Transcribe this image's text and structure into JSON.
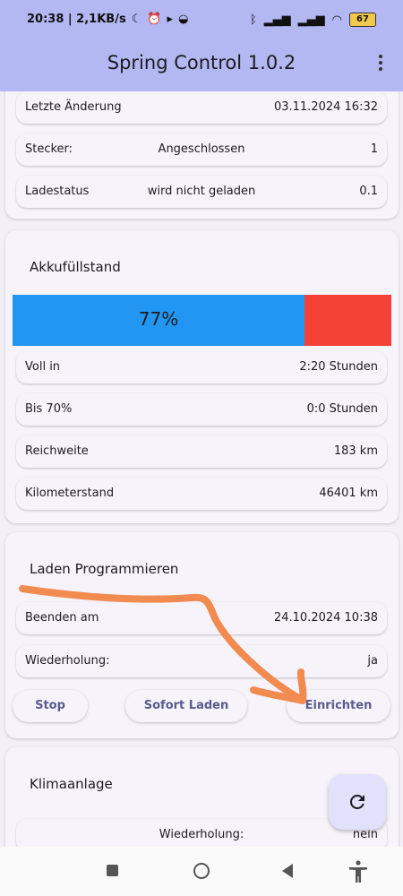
{
  "status_bar": {
    "time_info": "20:38 | 2,1KB/s",
    "battery": "67"
  },
  "app_bar": {
    "title": "Spring Control 1.0.2"
  },
  "top_card": {
    "rows": [
      {
        "label": "Letzte Änderung",
        "middle": "",
        "value": "03.11.2024 16:32"
      },
      {
        "label": "Stecker:",
        "middle": "Angeschlossen",
        "value": "1"
      },
      {
        "label": "Ladestatus",
        "middle": "wird nicht geladen",
        "value": "0.1"
      }
    ]
  },
  "battery_card": {
    "title": "Akkufüllstand",
    "percent_label": "77%",
    "charge_fraction": 0.77,
    "colors": {
      "filled": "#2196f3",
      "empty": "#f44336"
    },
    "rows": [
      {
        "label": "Voll in",
        "value": "2:20 Stunden"
      },
      {
        "label": "Bis 70%",
        "value": "0:0 Stunden"
      },
      {
        "label": "Reichweite",
        "value": "183 km"
      },
      {
        "label": "Kilometerstand",
        "value": "46401 km"
      }
    ]
  },
  "schedule_card": {
    "title": "Laden Programmieren",
    "rows": [
      {
        "label": "Beenden am",
        "value": "24.10.2024 10:38"
      },
      {
        "label": "Wiederholung:",
        "value": "ja"
      }
    ],
    "buttons": {
      "stop": "Stop",
      "charge_now": "Sofort Laden",
      "setup": "Einrichten"
    }
  },
  "climate_card": {
    "title": "Klimaanlage",
    "rows": [
      {
        "middle": "Wiederholung:",
        "value": "nein"
      }
    ]
  },
  "fab": {
    "icon": "refresh-icon"
  },
  "annotation_color": "#f28b50"
}
